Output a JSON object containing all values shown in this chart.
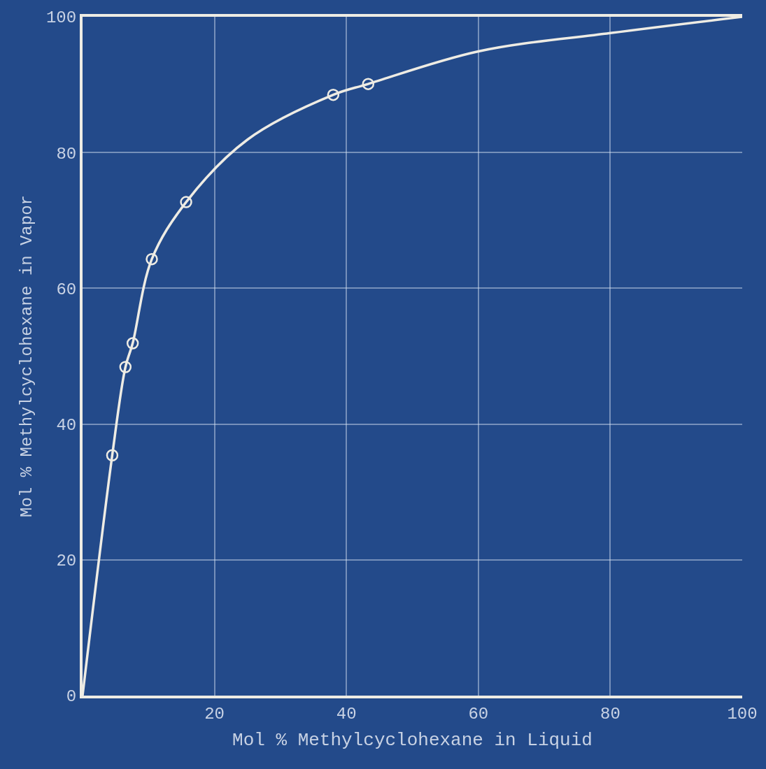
{
  "chart_data": {
    "type": "line",
    "xlabel": "Mol % Methylcyclohexane in Liquid",
    "ylabel": "Mol % Methylcyclohexane in Vapor",
    "series": [
      {
        "color": "#eeece4",
        "marker": "none",
        "x": [
          0,
          4.5,
          6.5,
          7.6,
          10.5,
          15.7,
          25,
          38,
          43.3,
          60,
          80,
          100
        ],
        "values": [
          0,
          35.4,
          48.4,
          51.9,
          64.3,
          72.7,
          81.9,
          88.5,
          90.1,
          94.9,
          97.6,
          100
        ]
      },
      {
        "type": "scatter",
        "color": "#eeece4",
        "marker": "circle",
        "x": [
          4.5,
          6.5,
          7.6,
          10.5,
          15.7,
          38,
          43.3
        ],
        "values": [
          35.4,
          48.4,
          51.9,
          64.3,
          72.7,
          88.5,
          90.1
        ]
      }
    ],
    "xlim": [
      0,
      100
    ],
    "ylim": [
      0,
      100
    ],
    "xticks": [
      20,
      40,
      60,
      80,
      100
    ],
    "yticks": [
      0,
      20,
      40,
      60,
      80,
      100
    ],
    "grid": true
  }
}
